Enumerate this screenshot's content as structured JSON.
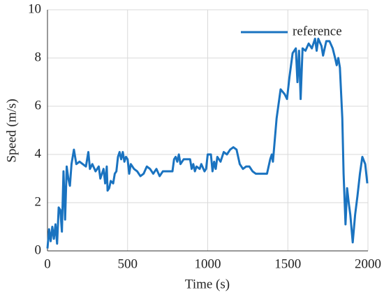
{
  "chart_data": {
    "type": "line",
    "xlabel": "Time (s)",
    "ylabel": "Speed (m/s)",
    "xlim": [
      0,
      2000
    ],
    "ylim": [
      0,
      10
    ],
    "xticks": [
      0,
      500,
      1000,
      1500,
      2000
    ],
    "yticks": [
      0,
      2,
      4,
      6,
      8,
      10
    ],
    "grid": true,
    "legend": "upper right",
    "x": [
      0,
      10,
      20,
      30,
      40,
      50,
      60,
      70,
      80,
      90,
      100,
      110,
      120,
      130,
      140,
      150,
      165,
      180,
      200,
      220,
      240,
      255,
      265,
      280,
      300,
      320,
      330,
      350,
      360,
      370,
      375,
      385,
      395,
      410,
      420,
      430,
      440,
      450,
      460,
      470,
      480,
      490,
      500,
      510,
      520,
      540,
      560,
      580,
      600,
      620,
      640,
      660,
      680,
      700,
      720,
      740,
      760,
      780,
      790,
      800,
      810,
      820,
      830,
      850,
      870,
      890,
      900,
      910,
      920,
      930,
      950,
      960,
      980,
      990,
      1000,
      1020,
      1030,
      1040,
      1050,
      1060,
      1080,
      1100,
      1120,
      1140,
      1160,
      1180,
      1200,
      1220,
      1240,
      1260,
      1280,
      1300,
      1330,
      1370,
      1390,
      1400,
      1407,
      1430,
      1455,
      1480,
      1495,
      1510,
      1530,
      1550,
      1560,
      1570,
      1580,
      1592,
      1610,
      1630,
      1650,
      1670,
      1680,
      1690,
      1710,
      1720,
      1740,
      1760,
      1780,
      1795,
      1805,
      1815,
      1825,
      1840,
      1848,
      1860,
      1870,
      1880,
      1890,
      1905,
      1920,
      1935,
      1950,
      1965,
      1983,
      1996
    ],
    "series": [
      {
        "name": "reference",
        "color": "#1a73c0",
        "values": [
          0.1,
          0.9,
          0.4,
          1.0,
          0.5,
          1.1,
          0.3,
          1.8,
          1.7,
          0.8,
          3.3,
          1.3,
          3.5,
          3.0,
          2.7,
          3.6,
          4.2,
          3.6,
          3.7,
          3.6,
          3.5,
          4.1,
          3.4,
          3.6,
          3.3,
          3.5,
          3.0,
          3.4,
          2.8,
          3.5,
          2.5,
          2.6,
          2.9,
          2.8,
          3.2,
          3.3,
          3.9,
          4.1,
          3.8,
          4.1,
          3.7,
          3.9,
          3.8,
          3.2,
          3.6,
          3.4,
          3.3,
          3.1,
          3.2,
          3.5,
          3.4,
          3.2,
          3.4,
          3.1,
          3.3,
          3.3,
          3.3,
          3.3,
          3.8,
          3.9,
          3.7,
          4.0,
          3.6,
          3.8,
          3.8,
          3.8,
          3.4,
          3.6,
          3.3,
          3.5,
          3.4,
          3.6,
          3.3,
          3.4,
          4.0,
          4.0,
          3.3,
          3.7,
          3.4,
          3.9,
          3.7,
          4.1,
          4.0,
          4.2,
          4.3,
          4.2,
          3.6,
          3.4,
          3.5,
          3.5,
          3.3,
          3.2,
          3.2,
          3.2,
          3.8,
          4.0,
          3.7,
          5.5,
          6.7,
          6.5,
          6.3,
          7.2,
          8.2,
          8.4,
          7.0,
          8.3,
          6.3,
          8.4,
          8.3,
          8.6,
          8.4,
          8.8,
          8.3,
          8.8,
          8.5,
          8.1,
          8.7,
          8.7,
          8.4,
          8.0,
          7.7,
          8.0,
          7.6,
          5.5,
          3.2,
          1.1,
          2.6,
          2.0,
          1.5,
          0.35,
          1.5,
          2.3,
          3.2,
          3.9,
          3.6,
          2.8
        ]
      }
    ]
  }
}
